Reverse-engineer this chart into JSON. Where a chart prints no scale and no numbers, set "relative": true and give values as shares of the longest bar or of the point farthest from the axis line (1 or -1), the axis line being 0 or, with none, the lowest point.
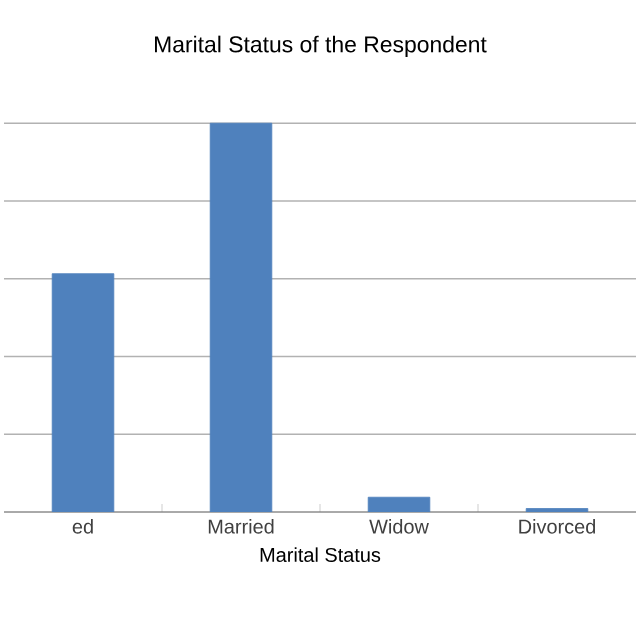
{
  "chart_data": {
    "type": "bar",
    "title": "Marital Status of the Respondent",
    "xlabel": "Marital Status",
    "categories": [
      "ed",
      "Married",
      "Widow",
      "Divorced"
    ],
    "values": [
      0.613,
      1,
      0.038,
      0.009
    ],
    "color": "#4f81bd",
    "relative": true,
    "grid": "y"
  }
}
